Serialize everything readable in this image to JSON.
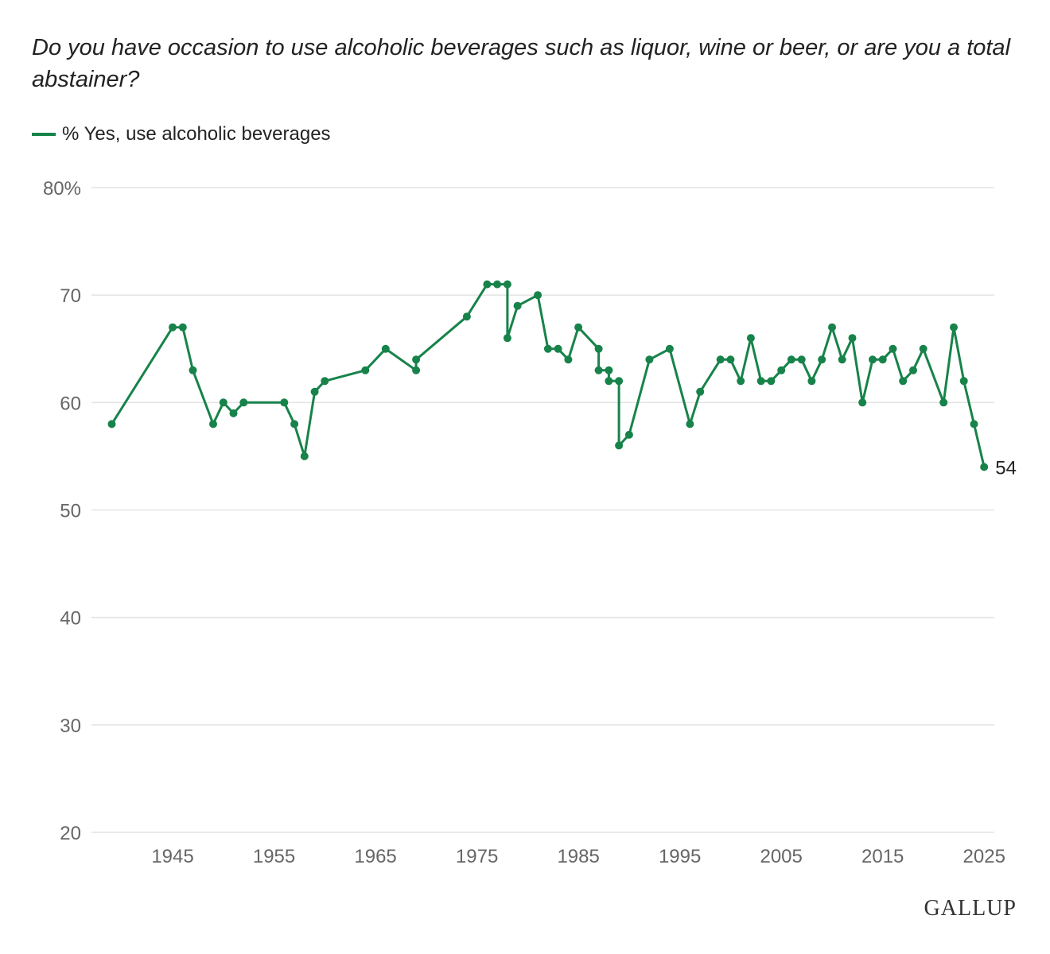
{
  "colors": {
    "series": "#17834a",
    "grid": "#e3e3e3",
    "tick_text": "#666666"
  },
  "chart_data": {
    "type": "line",
    "title": "Do you have occasion to use alcoholic beverages such as liquor, wine or beer, or are you a total abstainer?",
    "xlabel": "",
    "ylabel": "",
    "ylim": [
      20,
      80
    ],
    "xlim": [
      1937,
      2026
    ],
    "y_ticks": [
      20,
      30,
      40,
      50,
      60,
      70,
      80
    ],
    "y_tick_labels": [
      "20",
      "30",
      "40",
      "50",
      "60",
      "70",
      "80%"
    ],
    "x_ticks": [
      1945,
      1955,
      1965,
      1975,
      1985,
      1995,
      2005,
      2015,
      2025
    ],
    "x_tick_labels": [
      "1945",
      "1955",
      "1965",
      "1975",
      "1985",
      "1995",
      "2005",
      "2015",
      "2025"
    ],
    "grid": true,
    "legend_position": "top-left",
    "end_label": "54",
    "series": [
      {
        "name": "% Yes, use alcoholic beverages",
        "points": [
          [
            1939,
            58
          ],
          [
            1945,
            67
          ],
          [
            1946,
            67
          ],
          [
            1947,
            63
          ],
          [
            1949,
            58
          ],
          [
            1950,
            60
          ],
          [
            1951,
            59
          ],
          [
            1952,
            60
          ],
          [
            1956,
            60
          ],
          [
            1957,
            58
          ],
          [
            1958,
            55
          ],
          [
            1959,
            61
          ],
          [
            1960,
            62
          ],
          [
            1964,
            63
          ],
          [
            1966,
            65
          ],
          [
            1969,
            63
          ],
          [
            1969,
            64
          ],
          [
            1974,
            68
          ],
          [
            1976,
            71
          ],
          [
            1977,
            71
          ],
          [
            1978,
            71
          ],
          [
            1978,
            66
          ],
          [
            1979,
            69
          ],
          [
            1981,
            70
          ],
          [
            1982,
            65
          ],
          [
            1983,
            65
          ],
          [
            1984,
            64
          ],
          [
            1985,
            67
          ],
          [
            1987,
            65
          ],
          [
            1987,
            63
          ],
          [
            1988,
            63
          ],
          [
            1988,
            62
          ],
          [
            1989,
            62
          ],
          [
            1989,
            56
          ],
          [
            1990,
            57
          ],
          [
            1992,
            64
          ],
          [
            1994,
            65
          ],
          [
            1996,
            58
          ],
          [
            1997,
            61
          ],
          [
            1999,
            64
          ],
          [
            2000,
            64
          ],
          [
            2001,
            62
          ],
          [
            2002,
            66
          ],
          [
            2003,
            62
          ],
          [
            2004,
            62
          ],
          [
            2005,
            63
          ],
          [
            2006,
            64
          ],
          [
            2007,
            64
          ],
          [
            2008,
            62
          ],
          [
            2009,
            64
          ],
          [
            2010,
            67
          ],
          [
            2011,
            64
          ],
          [
            2012,
            66
          ],
          [
            2013,
            60
          ],
          [
            2014,
            64
          ],
          [
            2015,
            64
          ],
          [
            2016,
            65
          ],
          [
            2017,
            62
          ],
          [
            2018,
            63
          ],
          [
            2019,
            65
          ],
          [
            2021,
            60
          ],
          [
            2022,
            67
          ],
          [
            2023,
            62
          ],
          [
            2024,
            58
          ],
          [
            2025,
            54
          ]
        ]
      }
    ]
  },
  "brand": "GALLUP"
}
